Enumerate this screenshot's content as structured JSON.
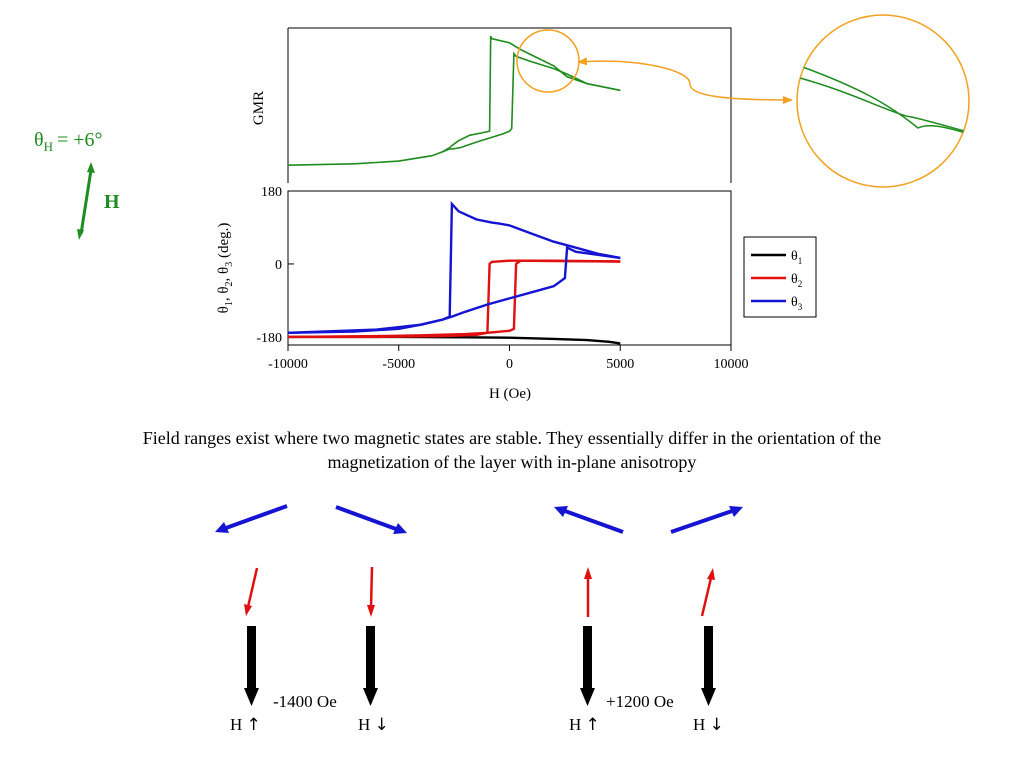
{
  "colors": {
    "gmr": "#1e8c1e",
    "theta1": "#000000",
    "theta2": "#e01010",
    "theta3": "#1414d2",
    "zoom": "#f4a020",
    "inplane_arrow": "#1414d2",
    "mid_arrow": "#e01010",
    "bottom_arrow": "#000000",
    "field_arrow": "#1e8c1e"
  },
  "field": {
    "theta_label": "θ",
    "theta_sub": "H",
    "theta_value": "= +6°",
    "arrow_label": "H"
  },
  "chart_data": [
    {
      "type": "line",
      "panel": "gmr",
      "ylabel": "GMR",
      "xlim": [
        -10000,
        10000
      ],
      "series": [
        {
          "name": "",
          "x": [
            -10000,
            -7000,
            -5000,
            -3500,
            -3000,
            -2700,
            -2550,
            -2300,
            -1800,
            -1200,
            -900,
            -850,
            -800,
            0,
            500,
            1000,
            2000,
            2600,
            3500,
            5000
          ],
          "values": [
            0.05,
            0.06,
            0.08,
            0.12,
            0.15,
            0.18,
            0.2,
            0.23,
            0.27,
            0.29,
            0.3,
            1.0,
            0.98,
            0.95,
            0.9,
            0.86,
            0.78,
            0.7,
            0.65,
            0.6
          ]
        },
        {
          "name": "",
          "x": [
            5000,
            3500,
            2600,
            2000,
            1000,
            300,
            200,
            100,
            0,
            -300,
            -900,
            -1500,
            -2200,
            -2550,
            -2700,
            -3000
          ],
          "values": [
            0.6,
            0.65,
            0.72,
            0.76,
            0.81,
            0.85,
            0.87,
            0.32,
            0.3,
            0.28,
            0.25,
            0.22,
            0.18,
            0.17,
            0.17,
            0.15
          ]
        }
      ]
    },
    {
      "type": "line",
      "panel": "angles",
      "xlabel": "H (Oe)",
      "ylabel_parts": [
        "θ",
        "1",
        ", θ",
        "2",
        ", θ",
        "3",
        " (deg.)"
      ],
      "xlim": [
        -10000,
        10000
      ],
      "ylim": [
        -200,
        180
      ],
      "x_ticks": [
        -10000,
        -5000,
        0,
        5000,
        10000
      ],
      "y_ticks": [
        -180,
        0,
        180
      ],
      "legend": "right",
      "legend_entries": [
        {
          "name": "θ",
          "sub": "1",
          "color_key": "theta1"
        },
        {
          "name": "θ",
          "sub": "2",
          "color_key": "theta2"
        },
        {
          "name": "θ",
          "sub": "3",
          "color_key": "theta3"
        }
      ],
      "series": [
        {
          "name": "θ1",
          "color_key": "theta1",
          "x": [
            -10000,
            -5000,
            -2000,
            0,
            2000,
            3500,
            4500,
            5000
          ],
          "values": [
            -180,
            -180,
            -181,
            -182,
            -185,
            -188,
            -192,
            -196
          ]
        },
        {
          "name": "θ2",
          "color_key": "theta2",
          "x": [
            -10000,
            -6000,
            -3000,
            -1500,
            -1000,
            -900,
            -800,
            0,
            2000,
            5000
          ],
          "values": [
            -180,
            -180,
            -178,
            -175,
            -170,
            0,
            5,
            8,
            8,
            6
          ]
        },
        {
          "name": "θ2",
          "color_key": "theta2",
          "x": [
            5000,
            2000,
            500,
            300,
            200,
            0,
            -1000,
            -2000,
            -4000,
            -6000,
            -10000
          ],
          "values": [
            6,
            7,
            8,
            0,
            -160,
            -165,
            -170,
            -173,
            -176,
            -178,
            -180
          ]
        },
        {
          "name": "θ3",
          "color_key": "theta3",
          "x": [
            -10000,
            -7000,
            -5000,
            -4000,
            -3000,
            -2700,
            -2600,
            -2300,
            -1500,
            -800,
            -500,
            0,
            1000,
            2000,
            3000,
            4000,
            5000
          ],
          "values": [
            -170,
            -167,
            -160,
            -150,
            -137,
            -130,
            148,
            130,
            110,
            102,
            100,
            95,
            75,
            55,
            40,
            25,
            15
          ]
        },
        {
          "name": "θ3",
          "color_key": "theta3",
          "x": [
            5000,
            3000,
            2600,
            2500,
            2000,
            1000,
            0,
            -1000,
            -2000,
            -2600,
            -3000,
            -4000,
            -6000,
            -10000
          ],
          "values": [
            15,
            30,
            40,
            -35,
            -55,
            -70,
            -85,
            -100,
            -118,
            -130,
            -137,
            -150,
            -162,
            -170
          ]
        }
      ]
    }
  ],
  "caption": {
    "line1": "Field ranges exist where two magnetic states are stable. They essentially differ in the orientation of the",
    "line2": "magnetization of the layer with in-plane anisotropy"
  },
  "states": [
    {
      "label": "-1400 Oe",
      "left": {
        "h": "H",
        "dir": "↑"
      },
      "right": {
        "h": "H",
        "dir": "↓"
      }
    },
    {
      "label": "+1200 Oe",
      "left": {
        "h": "H",
        "dir": "↑"
      },
      "right": {
        "h": "H",
        "dir": "↓"
      }
    }
  ]
}
